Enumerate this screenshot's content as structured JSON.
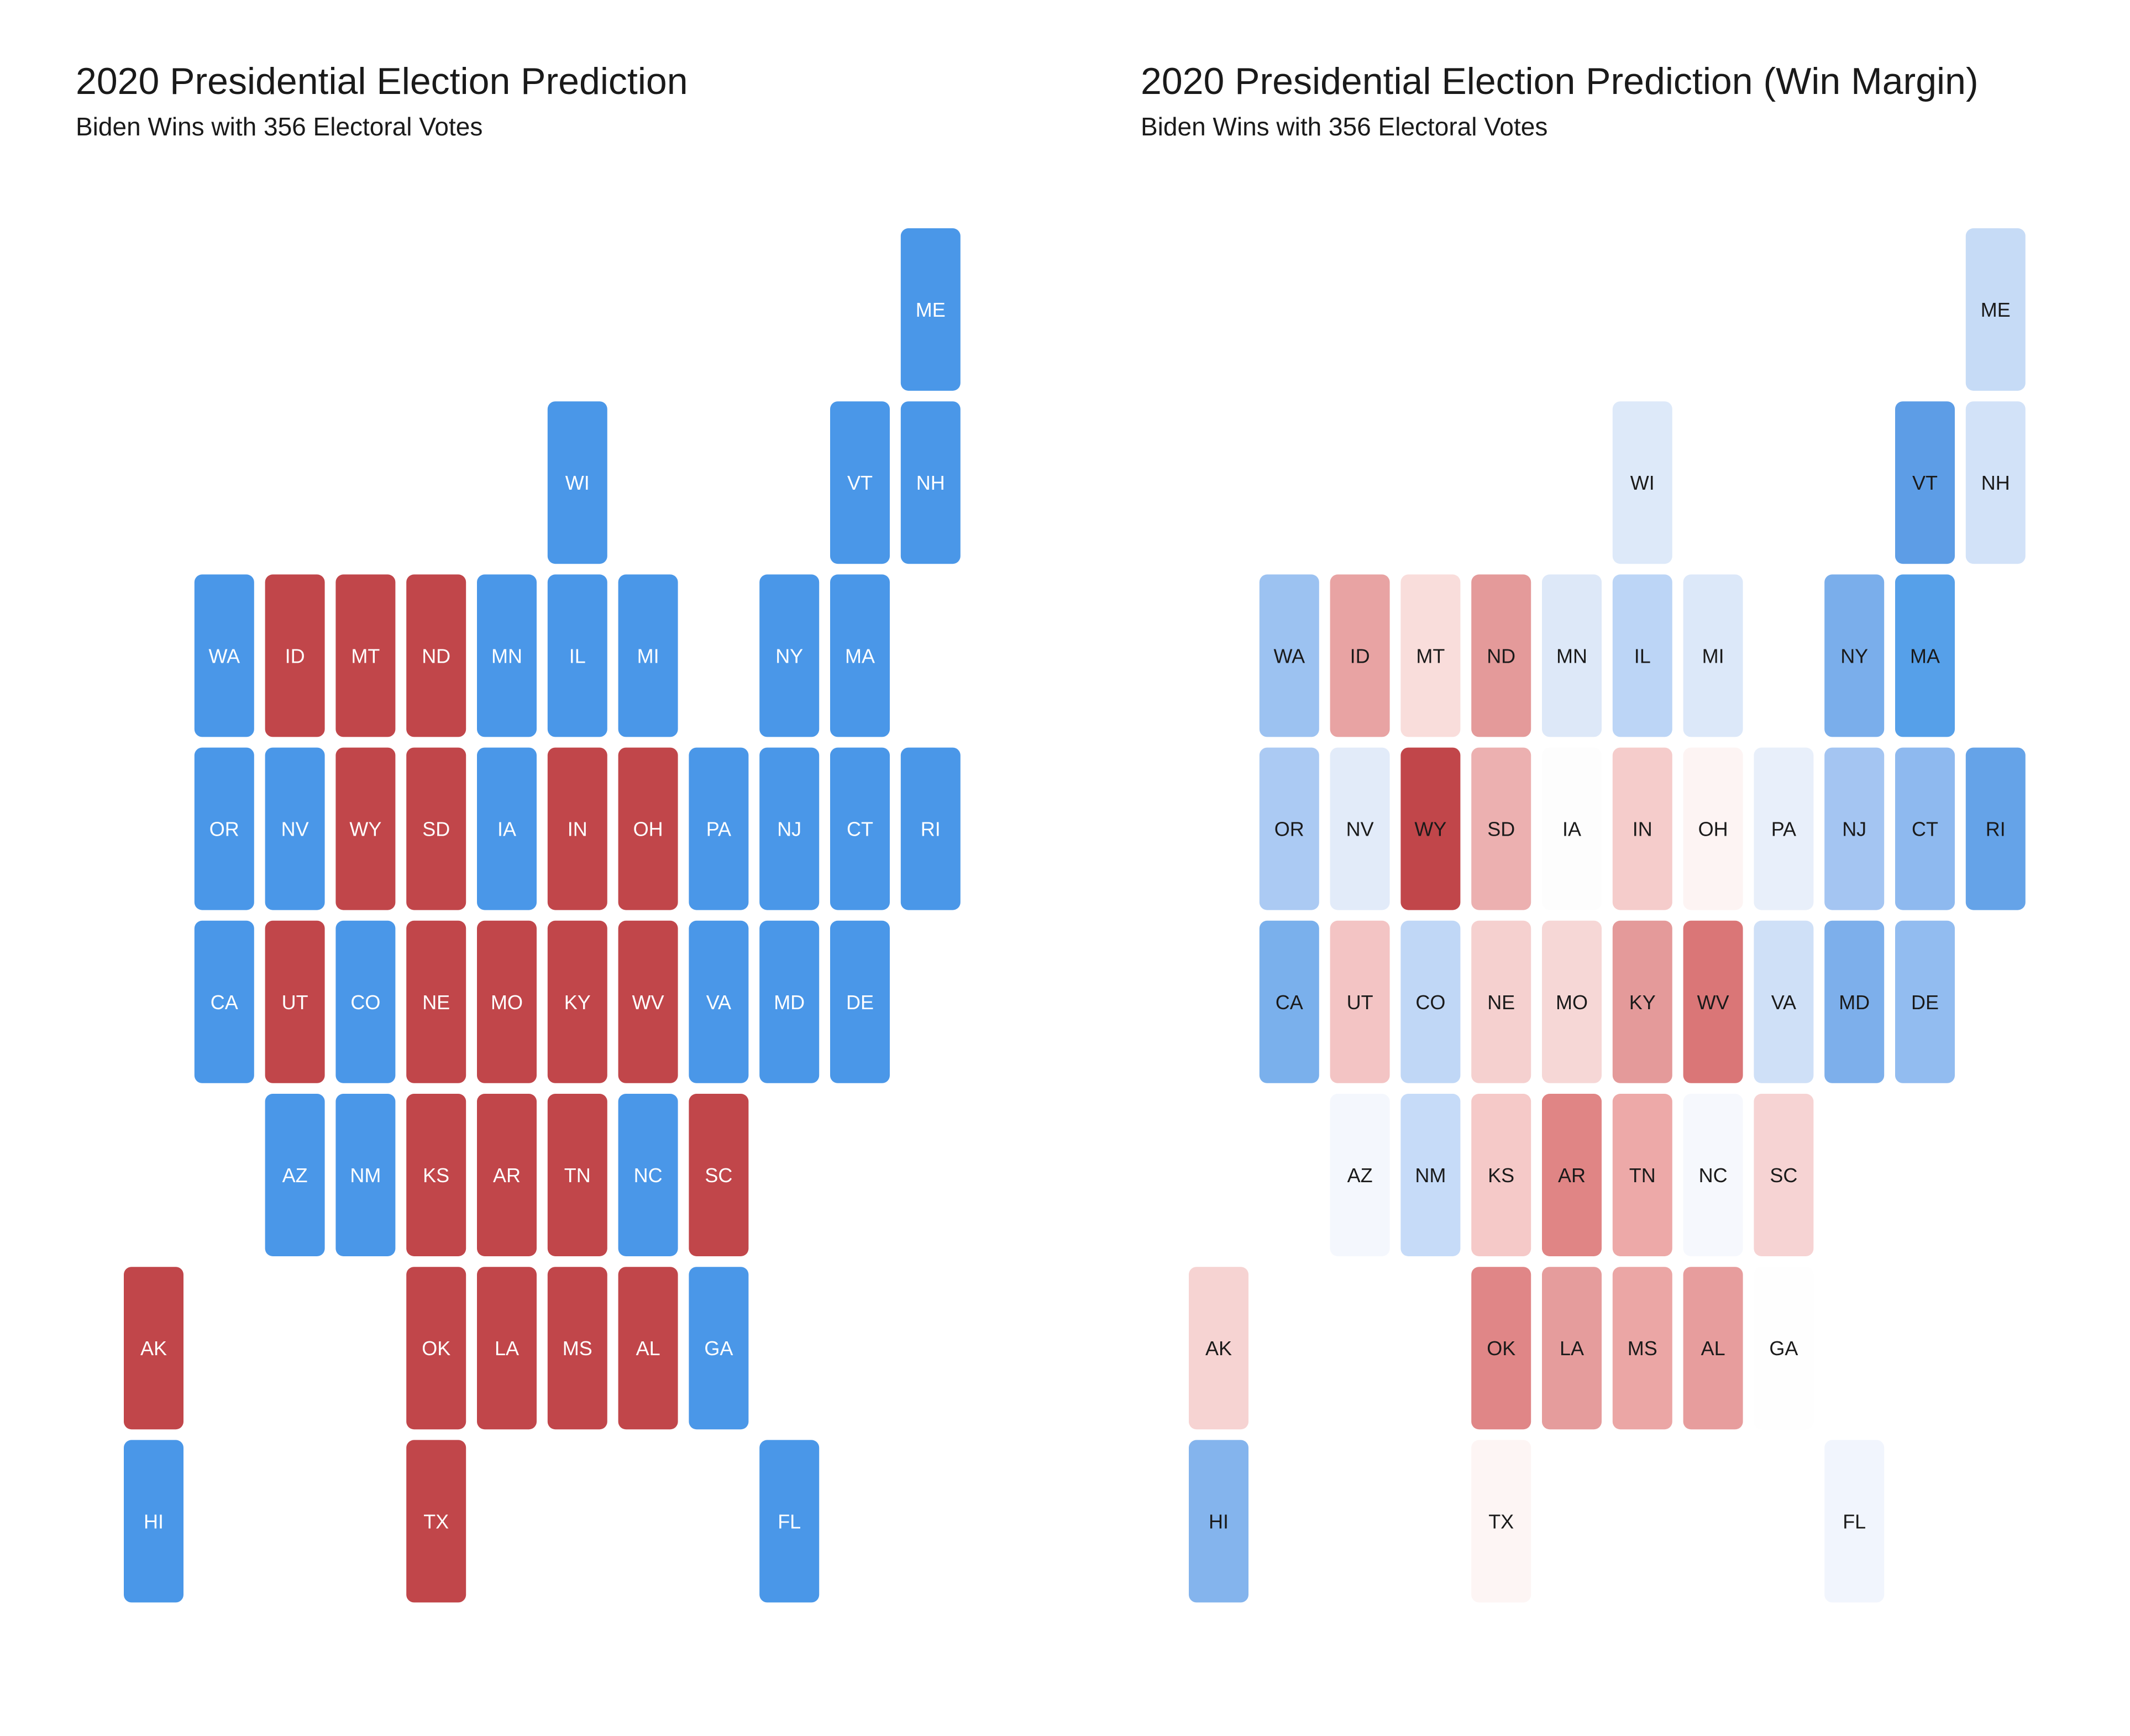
{
  "chart_data": [
    {
      "type": "heatmap",
      "title": "2020 Presidential Election Prediction",
      "subtitle": "Biden Wins with 356 Electoral Votes",
      "encoding": "winner",
      "winner_colors": {
        "D": "#4a97e8",
        "R": "#c1464a"
      },
      "label_color": "#ffffff",
      "states": [
        {
          "state": "ME",
          "col": 11,
          "row": 0,
          "winner": "D"
        },
        {
          "state": "WI",
          "col": 6,
          "row": 1,
          "winner": "D"
        },
        {
          "state": "VT",
          "col": 10,
          "row": 1,
          "winner": "D"
        },
        {
          "state": "NH",
          "col": 11,
          "row": 1,
          "winner": "D"
        },
        {
          "state": "WA",
          "col": 1,
          "row": 2,
          "winner": "D"
        },
        {
          "state": "ID",
          "col": 2,
          "row": 2,
          "winner": "R"
        },
        {
          "state": "MT",
          "col": 3,
          "row": 2,
          "winner": "R"
        },
        {
          "state": "ND",
          "col": 4,
          "row": 2,
          "winner": "R"
        },
        {
          "state": "MN",
          "col": 5,
          "row": 2,
          "winner": "D"
        },
        {
          "state": "IL",
          "col": 6,
          "row": 2,
          "winner": "D"
        },
        {
          "state": "MI",
          "col": 7,
          "row": 2,
          "winner": "D"
        },
        {
          "state": "NY",
          "col": 9,
          "row": 2,
          "winner": "D"
        },
        {
          "state": "MA",
          "col": 10,
          "row": 2,
          "winner": "D"
        },
        {
          "state": "OR",
          "col": 1,
          "row": 3,
          "winner": "D"
        },
        {
          "state": "NV",
          "col": 2,
          "row": 3,
          "winner": "D"
        },
        {
          "state": "WY",
          "col": 3,
          "row": 3,
          "winner": "R"
        },
        {
          "state": "SD",
          "col": 4,
          "row": 3,
          "winner": "R"
        },
        {
          "state": "IA",
          "col": 5,
          "row": 3,
          "winner": "D"
        },
        {
          "state": "IN",
          "col": 6,
          "row": 3,
          "winner": "R"
        },
        {
          "state": "OH",
          "col": 7,
          "row": 3,
          "winner": "R"
        },
        {
          "state": "PA",
          "col": 8,
          "row": 3,
          "winner": "D"
        },
        {
          "state": "NJ",
          "col": 9,
          "row": 3,
          "winner": "D"
        },
        {
          "state": "CT",
          "col": 10,
          "row": 3,
          "winner": "D"
        },
        {
          "state": "RI",
          "col": 11,
          "row": 3,
          "winner": "D"
        },
        {
          "state": "CA",
          "col": 1,
          "row": 4,
          "winner": "D"
        },
        {
          "state": "UT",
          "col": 2,
          "row": 4,
          "winner": "R"
        },
        {
          "state": "CO",
          "col": 3,
          "row": 4,
          "winner": "D"
        },
        {
          "state": "NE",
          "col": 4,
          "row": 4,
          "winner": "R"
        },
        {
          "state": "MO",
          "col": 5,
          "row": 4,
          "winner": "R"
        },
        {
          "state": "KY",
          "col": 6,
          "row": 4,
          "winner": "R"
        },
        {
          "state": "WV",
          "col": 7,
          "row": 4,
          "winner": "R"
        },
        {
          "state": "VA",
          "col": 8,
          "row": 4,
          "winner": "D"
        },
        {
          "state": "MD",
          "col": 9,
          "row": 4,
          "winner": "D"
        },
        {
          "state": "DE",
          "col": 10,
          "row": 4,
          "winner": "D"
        },
        {
          "state": "AZ",
          "col": 2,
          "row": 5,
          "winner": "D"
        },
        {
          "state": "NM",
          "col": 3,
          "row": 5,
          "winner": "D"
        },
        {
          "state": "KS",
          "col": 4,
          "row": 5,
          "winner": "R"
        },
        {
          "state": "AR",
          "col": 5,
          "row": 5,
          "winner": "R"
        },
        {
          "state": "TN",
          "col": 6,
          "row": 5,
          "winner": "R"
        },
        {
          "state": "NC",
          "col": 7,
          "row": 5,
          "winner": "D"
        },
        {
          "state": "SC",
          "col": 8,
          "row": 5,
          "winner": "R"
        },
        {
          "state": "AK",
          "col": 0,
          "row": 6,
          "winner": "R"
        },
        {
          "state": "OK",
          "col": 4,
          "row": 6,
          "winner": "R"
        },
        {
          "state": "LA",
          "col": 5,
          "row": 6,
          "winner": "R"
        },
        {
          "state": "MS",
          "col": 6,
          "row": 6,
          "winner": "R"
        },
        {
          "state": "AL",
          "col": 7,
          "row": 6,
          "winner": "R"
        },
        {
          "state": "GA",
          "col": 8,
          "row": 6,
          "winner": "D"
        },
        {
          "state": "HI",
          "col": 0,
          "row": 7,
          "winner": "D"
        },
        {
          "state": "TX",
          "col": 4,
          "row": 7,
          "winner": "R"
        },
        {
          "state": "FL",
          "col": 9,
          "row": 7,
          "winner": "D"
        }
      ]
    },
    {
      "type": "heatmap",
      "title": "2020 Presidential Election Prediction (Win Margin)",
      "subtitle": "Biden Wins with 356 Electoral Votes",
      "encoding": "margin",
      "label_color": "#1a1a1a",
      "states": [
        {
          "state": "ME",
          "col": 11,
          "row": 0,
          "color": "#c6dbf6"
        },
        {
          "state": "WI",
          "col": 6,
          "row": 1,
          "color": "#dde9f9"
        },
        {
          "state": "VT",
          "col": 10,
          "row": 1,
          "color": "#5d9de6"
        },
        {
          "state": "NH",
          "col": 11,
          "row": 1,
          "color": "#d2e2f8"
        },
        {
          "state": "WA",
          "col": 1,
          "row": 2,
          "color": "#9cc2f1"
        },
        {
          "state": "ID",
          "col": 2,
          "row": 2,
          "color": "#e8a3a3"
        },
        {
          "state": "MT",
          "col": 3,
          "row": 2,
          "color": "#f9dddb"
        },
        {
          "state": "ND",
          "col": 4,
          "row": 2,
          "color": "#e49a9a"
        },
        {
          "state": "MN",
          "col": 5,
          "row": 2,
          "color": "#dde8f8"
        },
        {
          "state": "IL",
          "col": 6,
          "row": 2,
          "color": "#bcd5f6"
        },
        {
          "state": "MI",
          "col": 7,
          "row": 2,
          "color": "#dce8f9"
        },
        {
          "state": "NY",
          "col": 9,
          "row": 2,
          "color": "#7aaeeb"
        },
        {
          "state": "MA",
          "col": 10,
          "row": 2,
          "color": "#56a0e9"
        },
        {
          "state": "OR",
          "col": 1,
          "row": 3,
          "color": "#abcaf3"
        },
        {
          "state": "NV",
          "col": 2,
          "row": 3,
          "color": "#e2ebf9"
        },
        {
          "state": "WY",
          "col": 3,
          "row": 3,
          "color": "#c1464a"
        },
        {
          "state": "SD",
          "col": 4,
          "row": 3,
          "color": "#ecb0b0"
        },
        {
          "state": "IA",
          "col": 5,
          "row": 3,
          "color": "#fdfdfd"
        },
        {
          "state": "IN",
          "col": 6,
          "row": 3,
          "color": "#f5cccb"
        },
        {
          "state": "OH",
          "col": 7,
          "row": 3,
          "color": "#fdf4f3"
        },
        {
          "state": "PA",
          "col": 8,
          "row": 3,
          "color": "#e8effa"
        },
        {
          "state": "NJ",
          "col": 9,
          "row": 3,
          "color": "#a4c5f2"
        },
        {
          "state": "CT",
          "col": 10,
          "row": 3,
          "color": "#8eb9ef"
        },
        {
          "state": "RI",
          "col": 11,
          "row": 3,
          "color": "#65a3e8"
        },
        {
          "state": "CA",
          "col": 1,
          "row": 4,
          "color": "#7ab0ec"
        },
        {
          "state": "UT",
          "col": 2,
          "row": 4,
          "color": "#f3c4c4"
        },
        {
          "state": "CO",
          "col": 3,
          "row": 4,
          "color": "#c0d7f6"
        },
        {
          "state": "NE",
          "col": 4,
          "row": 4,
          "color": "#f5d0cf"
        },
        {
          "state": "MO",
          "col": 5,
          "row": 4,
          "color": "#f6d7d6"
        },
        {
          "state": "KY",
          "col": 6,
          "row": 4,
          "color": "#e49a9a"
        },
        {
          "state": "WV",
          "col": 7,
          "row": 4,
          "color": "#da7677"
        },
        {
          "state": "VA",
          "col": 8,
          "row": 4,
          "color": "#cfe0f7"
        },
        {
          "state": "MD",
          "col": 9,
          "row": 4,
          "color": "#7dafeb"
        },
        {
          "state": "DE",
          "col": 10,
          "row": 4,
          "color": "#92bcf0"
        },
        {
          "state": "AZ",
          "col": 2,
          "row": 5,
          "color": "#f4f7fd"
        },
        {
          "state": "NM",
          "col": 3,
          "row": 5,
          "color": "#c6dbf8"
        },
        {
          "state": "KS",
          "col": 4,
          "row": 5,
          "color": "#f5c9c8"
        },
        {
          "state": "AR",
          "col": 5,
          "row": 5,
          "color": "#e08585"
        },
        {
          "state": "TN",
          "col": 6,
          "row": 5,
          "color": "#eda9a8"
        },
        {
          "state": "NC",
          "col": 7,
          "row": 5,
          "color": "#f6f8fd"
        },
        {
          "state": "SC",
          "col": 8,
          "row": 5,
          "color": "#f6d3d3"
        },
        {
          "state": "AK",
          "col": 0,
          "row": 6,
          "color": "#f6d3d2"
        },
        {
          "state": "OK",
          "col": 4,
          "row": 6,
          "color": "#e08687"
        },
        {
          "state": "LA",
          "col": 5,
          "row": 6,
          "color": "#e59c9c"
        },
        {
          "state": "MS",
          "col": 6,
          "row": 6,
          "color": "#eba6a5"
        },
        {
          "state": "AL",
          "col": 7,
          "row": 6,
          "color": "#e79d9d"
        },
        {
          "state": "GA",
          "col": 8,
          "row": 6,
          "color": "#fefefe"
        },
        {
          "state": "HI",
          "col": 0,
          "row": 7,
          "color": "#84b4ed"
        },
        {
          "state": "TX",
          "col": 4,
          "row": 7,
          "color": "#fdf5f4"
        },
        {
          "state": "FL",
          "col": 9,
          "row": 7,
          "color": "#f1f5fd"
        }
      ]
    }
  ]
}
